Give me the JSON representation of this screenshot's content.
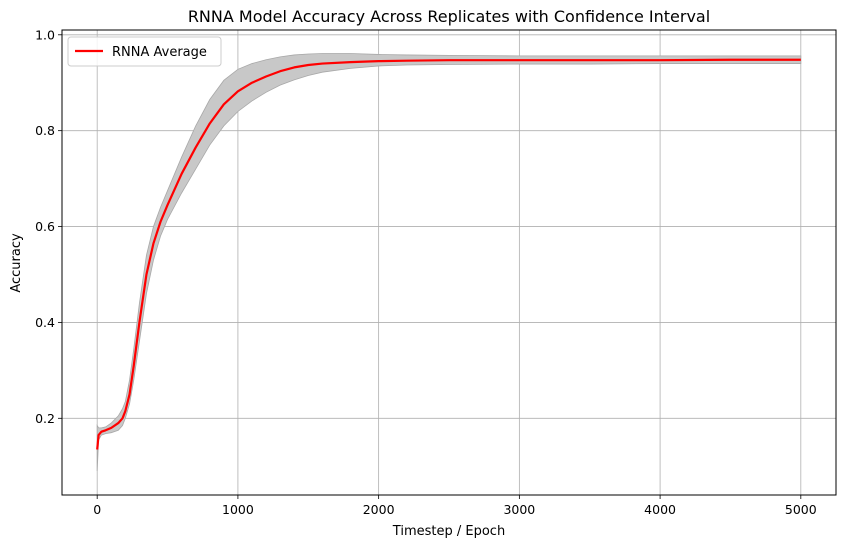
{
  "chart_data": {
    "type": "line",
    "title": "RNNA Model Accuracy Across Replicates with Confidence Interval",
    "xlabel": "Timestep / Epoch",
    "ylabel": "Accuracy",
    "xlim": [
      -250,
      5250
    ],
    "ylim": [
      0.04,
      1.01
    ],
    "xticks": [
      0,
      1000,
      2000,
      3000,
      4000,
      5000
    ],
    "yticks": [
      0.2,
      0.4,
      0.6,
      0.8,
      1.0
    ],
    "xtick_labels": [
      "0",
      "1000",
      "2000",
      "3000",
      "4000",
      "5000"
    ],
    "ytick_labels": [
      "0.2",
      "0.4",
      "0.6",
      "0.8",
      "1.0"
    ],
    "grid": true,
    "legend_position": "top-left",
    "series": [
      {
        "name": "RNNA Average",
        "color": "#ff0000",
        "x": [
          0,
          10,
          30,
          60,
          100,
          150,
          180,
          200,
          230,
          260,
          300,
          350,
          400,
          450,
          500,
          600,
          700,
          800,
          900,
          1000,
          1100,
          1200,
          1300,
          1400,
          1500,
          1600,
          1800,
          2000,
          2200,
          2500,
          3000,
          3500,
          4000,
          4500,
          5000
        ],
        "y": [
          0.135,
          0.165,
          0.172,
          0.175,
          0.18,
          0.19,
          0.2,
          0.215,
          0.25,
          0.31,
          0.4,
          0.5,
          0.565,
          0.61,
          0.645,
          0.71,
          0.765,
          0.815,
          0.855,
          0.882,
          0.9,
          0.913,
          0.924,
          0.932,
          0.937,
          0.94,
          0.943,
          0.945,
          0.946,
          0.947,
          0.947,
          0.947,
          0.947,
          0.948,
          0.948
        ]
      }
    ],
    "confidence_band": {
      "color": "#c8c8c8",
      "x": [
        0,
        10,
        30,
        60,
        100,
        150,
        180,
        200,
        230,
        260,
        300,
        350,
        400,
        450,
        500,
        600,
        700,
        800,
        900,
        1000,
        1100,
        1200,
        1300,
        1400,
        1500,
        1600,
        1800,
        2000,
        2200,
        2500,
        3000,
        3500,
        4000,
        4500,
        5000
      ],
      "lower": [
        0.09,
        0.155,
        0.165,
        0.168,
        0.17,
        0.175,
        0.185,
        0.2,
        0.23,
        0.28,
        0.36,
        0.46,
        0.53,
        0.58,
        0.615,
        0.67,
        0.72,
        0.77,
        0.81,
        0.84,
        0.862,
        0.88,
        0.895,
        0.906,
        0.915,
        0.922,
        0.93,
        0.935,
        0.937,
        0.938,
        0.939,
        0.939,
        0.94,
        0.94,
        0.94
      ],
      "upper": [
        0.185,
        0.18,
        0.18,
        0.182,
        0.19,
        0.205,
        0.22,
        0.235,
        0.28,
        0.345,
        0.44,
        0.54,
        0.6,
        0.64,
        0.675,
        0.745,
        0.81,
        0.865,
        0.905,
        0.928,
        0.94,
        0.948,
        0.954,
        0.958,
        0.96,
        0.961,
        0.961,
        0.959,
        0.958,
        0.957,
        0.956,
        0.956,
        0.956,
        0.956,
        0.956
      ]
    }
  }
}
